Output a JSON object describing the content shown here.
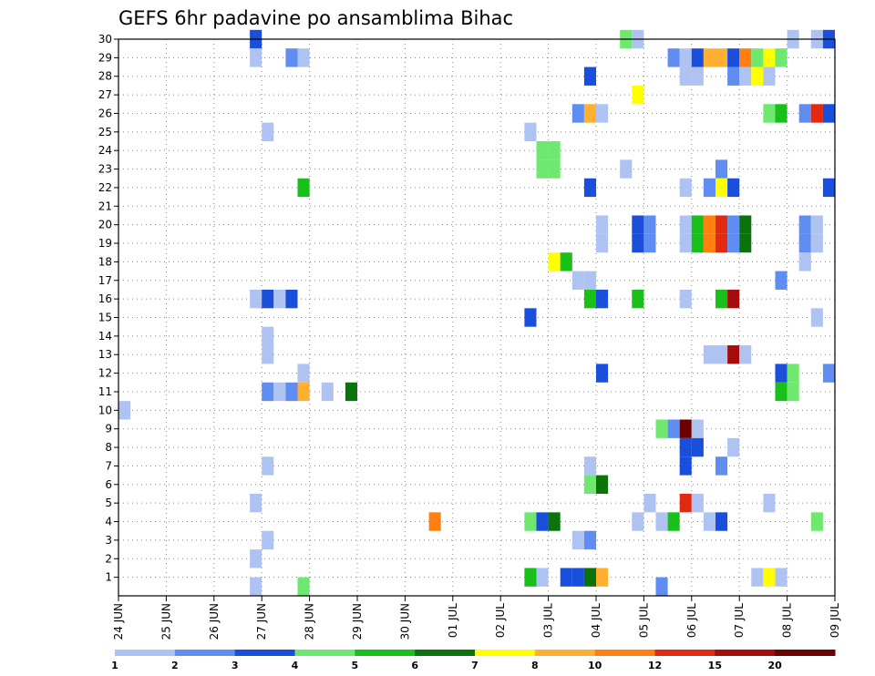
{
  "chart_data": {
    "type": "heatmap",
    "title": "GEFS 6hr padavine po ansamblima Bihac",
    "xlabel": "",
    "ylabel": "",
    "y_ticks": [
      "1",
      "2",
      "3",
      "4",
      "5",
      "6",
      "7",
      "8",
      "9",
      "10",
      "11",
      "12",
      "13",
      "14",
      "15",
      "16",
      "17",
      "18",
      "19",
      "20",
      "21",
      "22",
      "23",
      "24",
      "25",
      "26",
      "27",
      "28",
      "29",
      "30"
    ],
    "x_ticks": [
      "24 JUN",
      "25 JUN",
      "26 JUN",
      "27 JUN",
      "28 JUN",
      "29 JUN",
      "30 JUN",
      "01 JUL",
      "02 JUL",
      "03 JUL",
      "04 JUL",
      "05 JUL",
      "06 JUL",
      "07 JUL",
      "08 JUL",
      "09 JUL"
    ],
    "x_range_days": [
      0,
      15
    ],
    "y_range": [
      0,
      30
    ],
    "grid": true,
    "legend": {
      "placement": "bottom",
      "labels": [
        "1",
        "2",
        "3",
        "4",
        "5",
        "6",
        "7",
        "8",
        "10",
        "12",
        "15",
        "20"
      ],
      "colors": [
        "#afc3f2",
        "#5f8df2",
        "#1a4fdc",
        "#6fe86f",
        "#19c019",
        "#0a730a",
        "#ffff00",
        "#ffb030",
        "#ff7f10",
        "#e12a10",
        "#a50d0d",
        "#6b0202"
      ]
    },
    "cells": [
      {
        "x": 2.875,
        "y": 30,
        "c": 3
      },
      {
        "x": 2.875,
        "y": 29,
        "c": 1
      },
      {
        "x": 3.625,
        "y": 29,
        "c": 2
      },
      {
        "x": 3.875,
        "y": 29,
        "c": 1
      },
      {
        "x": 3.125,
        "y": 25,
        "c": 1
      },
      {
        "x": 3.875,
        "y": 22,
        "c": 5
      },
      {
        "x": 2.875,
        "y": 16,
        "c": 1
      },
      {
        "x": 3.125,
        "y": 16,
        "c": 3
      },
      {
        "x": 3.375,
        "y": 16,
        "c": 1
      },
      {
        "x": 3.625,
        "y": 16,
        "c": 3
      },
      {
        "x": 3.125,
        "y": 14,
        "c": 1
      },
      {
        "x": 3.125,
        "y": 13,
        "c": 1
      },
      {
        "x": 3.875,
        "y": 12,
        "c": 1
      },
      {
        "x": 3.125,
        "y": 11,
        "c": 2
      },
      {
        "x": 3.375,
        "y": 11,
        "c": 1
      },
      {
        "x": 3.625,
        "y": 11,
        "c": 2
      },
      {
        "x": 3.875,
        "y": 11,
        "c": 8
      },
      {
        "x": 4.375,
        "y": 11,
        "c": 1
      },
      {
        "x": 4.875,
        "y": 11,
        "c": 6
      },
      {
        "x": 0.125,
        "y": 10,
        "c": 1
      },
      {
        "x": 3.125,
        "y": 7,
        "c": 1
      },
      {
        "x": 2.875,
        "y": 5,
        "c": 1
      },
      {
        "x": 3.125,
        "y": 3,
        "c": 1
      },
      {
        "x": 2.875,
        "y": 2,
        "c": 1
      },
      {
        "x": 2.875,
        "y": 0.5,
        "c": 1
      },
      {
        "x": 3.875,
        "y": 0.5,
        "c": 4
      },
      {
        "x": 6.625,
        "y": 4,
        "c": 9
      },
      {
        "x": 10.625,
        "y": 30,
        "c": 4
      },
      {
        "x": 10.875,
        "y": 30,
        "c": 1
      },
      {
        "x": 14.125,
        "y": 30,
        "c": 1
      },
      {
        "x": 14.625,
        "y": 30,
        "c": 1
      },
      {
        "x": 14.875,
        "y": 30,
        "c": 3
      },
      {
        "x": 11.625,
        "y": 29,
        "c": 2
      },
      {
        "x": 11.875,
        "y": 29,
        "c": 1
      },
      {
        "x": 12.125,
        "y": 29,
        "c": 3
      },
      {
        "x": 12.375,
        "y": 29,
        "c": 8
      },
      {
        "x": 12.625,
        "y": 29,
        "c": 8
      },
      {
        "x": 12.875,
        "y": 29,
        "c": 3
      },
      {
        "x": 13.125,
        "y": 29,
        "c": 9
      },
      {
        "x": 13.375,
        "y": 29,
        "c": 4
      },
      {
        "x": 13.625,
        "y": 29,
        "c": 7
      },
      {
        "x": 13.875,
        "y": 29,
        "c": 4
      },
      {
        "x": 9.875,
        "y": 28,
        "c": 3
      },
      {
        "x": 11.875,
        "y": 28,
        "c": 1
      },
      {
        "x": 12.125,
        "y": 28,
        "c": 1
      },
      {
        "x": 12.875,
        "y": 28,
        "c": 2
      },
      {
        "x": 13.125,
        "y": 28,
        "c": 1
      },
      {
        "x": 13.375,
        "y": 28,
        "c": 7
      },
      {
        "x": 13.625,
        "y": 28,
        "c": 1
      },
      {
        "x": 10.875,
        "y": 27,
        "c": 7
      },
      {
        "x": 9.625,
        "y": 26,
        "c": 2
      },
      {
        "x": 9.875,
        "y": 26,
        "c": 8
      },
      {
        "x": 10.125,
        "y": 26,
        "c": 1
      },
      {
        "x": 13.625,
        "y": 26,
        "c": 4
      },
      {
        "x": 13.875,
        "y": 26,
        "c": 5
      },
      {
        "x": 14.375,
        "y": 26,
        "c": 2
      },
      {
        "x": 14.625,
        "y": 26,
        "c": 10
      },
      {
        "x": 14.875,
        "y": 26,
        "c": 3
      },
      {
        "x": 8.625,
        "y": 25,
        "c": 1
      },
      {
        "x": 8.875,
        "y": 24,
        "c": 4
      },
      {
        "x": 9.125,
        "y": 24,
        "c": 4
      },
      {
        "x": 8.875,
        "y": 23,
        "c": 4
      },
      {
        "x": 9.125,
        "y": 23,
        "c": 4
      },
      {
        "x": 10.625,
        "y": 23,
        "c": 1
      },
      {
        "x": 12.625,
        "y": 23,
        "c": 2
      },
      {
        "x": 9.875,
        "y": 22,
        "c": 3
      },
      {
        "x": 11.875,
        "y": 22,
        "c": 1
      },
      {
        "x": 12.375,
        "y": 22,
        "c": 2
      },
      {
        "x": 12.625,
        "y": 22,
        "c": 7
      },
      {
        "x": 12.875,
        "y": 22,
        "c": 3
      },
      {
        "x": 14.875,
        "y": 22,
        "c": 3
      },
      {
        "x": 10.125,
        "y": 20,
        "c": 1
      },
      {
        "x": 10.875,
        "y": 20,
        "c": 3
      },
      {
        "x": 11.125,
        "y": 20,
        "c": 2
      },
      {
        "x": 11.875,
        "y": 20,
        "c": 1
      },
      {
        "x": 12.125,
        "y": 20,
        "c": 5
      },
      {
        "x": 12.375,
        "y": 20,
        "c": 9
      },
      {
        "x": 12.625,
        "y": 20,
        "c": 10
      },
      {
        "x": 12.875,
        "y": 20,
        "c": 2
      },
      {
        "x": 13.125,
        "y": 20,
        "c": 6
      },
      {
        "x": 14.375,
        "y": 20,
        "c": 2
      },
      {
        "x": 14.625,
        "y": 20,
        "c": 1
      },
      {
        "x": 10.125,
        "y": 19,
        "c": 1
      },
      {
        "x": 10.875,
        "y": 19,
        "c": 3
      },
      {
        "x": 11.125,
        "y": 19,
        "c": 2
      },
      {
        "x": 11.875,
        "y": 19,
        "c": 1
      },
      {
        "x": 12.125,
        "y": 19,
        "c": 5
      },
      {
        "x": 12.375,
        "y": 19,
        "c": 9
      },
      {
        "x": 12.625,
        "y": 19,
        "c": 10
      },
      {
        "x": 12.875,
        "y": 19,
        "c": 2
      },
      {
        "x": 13.125,
        "y": 19,
        "c": 6
      },
      {
        "x": 14.375,
        "y": 19,
        "c": 2
      },
      {
        "x": 14.625,
        "y": 19,
        "c": 1
      },
      {
        "x": 9.125,
        "y": 18,
        "c": 7
      },
      {
        "x": 9.375,
        "y": 18,
        "c": 5
      },
      {
        "x": 14.375,
        "y": 18,
        "c": 1
      },
      {
        "x": 9.625,
        "y": 17,
        "c": 1
      },
      {
        "x": 9.875,
        "y": 17,
        "c": 1
      },
      {
        "x": 13.875,
        "y": 17,
        "c": 2
      },
      {
        "x": 9.875,
        "y": 16,
        "c": 5
      },
      {
        "x": 10.125,
        "y": 16,
        "c": 3
      },
      {
        "x": 10.875,
        "y": 16,
        "c": 5
      },
      {
        "x": 11.875,
        "y": 16,
        "c": 1
      },
      {
        "x": 12.625,
        "y": 16,
        "c": 5
      },
      {
        "x": 12.875,
        "y": 16,
        "c": 11
      },
      {
        "x": 8.625,
        "y": 15,
        "c": 3
      },
      {
        "x": 14.625,
        "y": 15,
        "c": 1
      },
      {
        "x": 12.375,
        "y": 13,
        "c": 1
      },
      {
        "x": 12.625,
        "y": 13,
        "c": 1
      },
      {
        "x": 12.875,
        "y": 13,
        "c": 11
      },
      {
        "x": 13.125,
        "y": 13,
        "c": 1
      },
      {
        "x": 10.125,
        "y": 12,
        "c": 3
      },
      {
        "x": 13.875,
        "y": 12,
        "c": 3
      },
      {
        "x": 14.125,
        "y": 12,
        "c": 4
      },
      {
        "x": 14.875,
        "y": 12,
        "c": 2
      },
      {
        "x": 13.875,
        "y": 11,
        "c": 5
      },
      {
        "x": 14.125,
        "y": 11,
        "c": 4
      },
      {
        "x": 11.375,
        "y": 9,
        "c": 4
      },
      {
        "x": 11.625,
        "y": 9,
        "c": 2
      },
      {
        "x": 11.875,
        "y": 9,
        "c": 12
      },
      {
        "x": 12.125,
        "y": 9,
        "c": 1
      },
      {
        "x": 11.875,
        "y": 8,
        "c": 3
      },
      {
        "x": 12.125,
        "y": 8,
        "c": 3
      },
      {
        "x": 12.875,
        "y": 8,
        "c": 1
      },
      {
        "x": 9.875,
        "y": 7,
        "c": 1
      },
      {
        "x": 11.875,
        "y": 7,
        "c": 3
      },
      {
        "x": 12.625,
        "y": 7,
        "c": 2
      },
      {
        "x": 9.875,
        "y": 6,
        "c": 4
      },
      {
        "x": 10.125,
        "y": 6,
        "c": 6
      },
      {
        "x": 11.125,
        "y": 5,
        "c": 1
      },
      {
        "x": 11.875,
        "y": 5,
        "c": 10
      },
      {
        "x": 12.125,
        "y": 5,
        "c": 1
      },
      {
        "x": 13.625,
        "y": 5,
        "c": 1
      },
      {
        "x": 8.625,
        "y": 4,
        "c": 4
      },
      {
        "x": 8.875,
        "y": 4,
        "c": 3
      },
      {
        "x": 9.125,
        "y": 4,
        "c": 6
      },
      {
        "x": 10.875,
        "y": 4,
        "c": 1
      },
      {
        "x": 11.375,
        "y": 4,
        "c": 1
      },
      {
        "x": 11.625,
        "y": 4,
        "c": 5
      },
      {
        "x": 12.375,
        "y": 4,
        "c": 1
      },
      {
        "x": 12.625,
        "y": 4,
        "c": 3
      },
      {
        "x": 14.625,
        "y": 4,
        "c": 4
      },
      {
        "x": 9.625,
        "y": 3,
        "c": 1
      },
      {
        "x": 9.875,
        "y": 3,
        "c": 2
      },
      {
        "x": 8.625,
        "y": 1,
        "c": 5
      },
      {
        "x": 8.875,
        "y": 1,
        "c": 1
      },
      {
        "x": 9.375,
        "y": 1,
        "c": 3
      },
      {
        "x": 9.625,
        "y": 1,
        "c": 3
      },
      {
        "x": 9.875,
        "y": 1,
        "c": 6
      },
      {
        "x": 10.125,
        "y": 1,
        "c": 8
      },
      {
        "x": 13.375,
        "y": 1,
        "c": 1
      },
      {
        "x": 13.625,
        "y": 1,
        "c": 7
      },
      {
        "x": 13.875,
        "y": 1,
        "c": 1
      },
      {
        "x": 11.375,
        "y": 0.5,
        "c": 2
      }
    ]
  }
}
